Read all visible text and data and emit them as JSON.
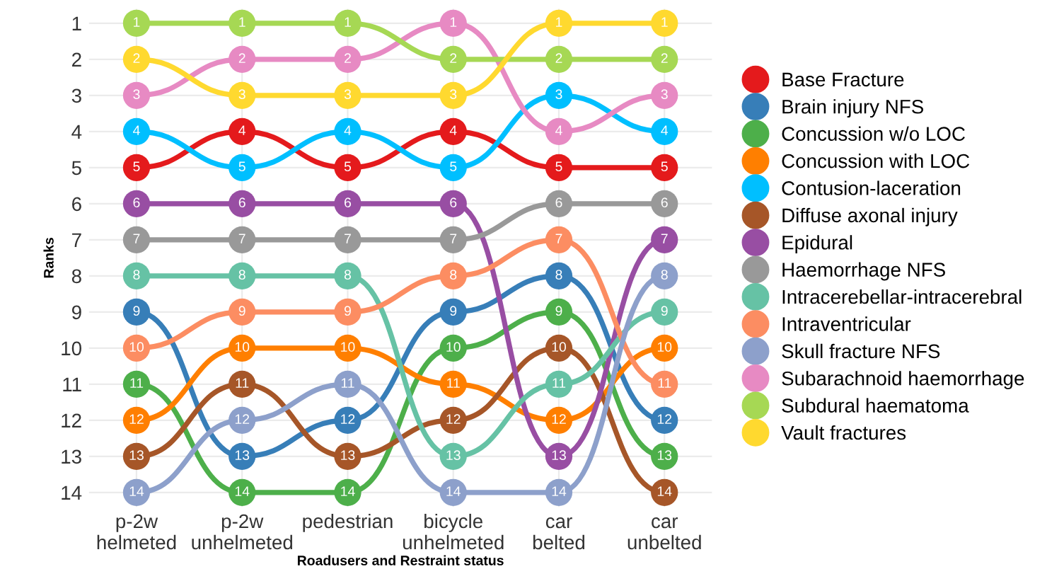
{
  "chart_data": {
    "type": "line",
    "xlabel": "Roadusers and Restraint status",
    "ylabel": "Ranks",
    "categories": [
      "p-2w\nhelmeted",
      "p-2w\nunhelmeted",
      "pedestrian",
      "bicycle\nunhelmeted",
      "car\nbelted",
      "car\nunbelted"
    ],
    "ylim": [
      14.4,
      0.6
    ],
    "yticks": [
      1,
      2,
      3,
      4,
      5,
      6,
      7,
      8,
      9,
      10,
      11,
      12,
      13,
      14
    ],
    "grid": true,
    "legend": "right",
    "marker": "circle",
    "line_style": "solid",
    "data_labels": true,
    "series": [
      {
        "name": "Base Fracture",
        "color": "#e41a1c",
        "values": [
          5,
          4,
          5,
          4,
          5,
          5
        ]
      },
      {
        "name": "Brain injury NFS",
        "color": "#377eb8",
        "values": [
          9,
          13,
          12,
          9,
          8,
          12
        ]
      },
      {
        "name": "Concussion w/o LOC",
        "color": "#4daf4a",
        "values": [
          11,
          14,
          14,
          10,
          9,
          13
        ]
      },
      {
        "name": "Concussion with LOC",
        "color": "#ff7f00",
        "values": [
          12,
          10,
          10,
          11,
          12,
          10
        ]
      },
      {
        "name": "Contusion-laceration",
        "color": "#00bfff",
        "values": [
          4,
          5,
          4,
          5,
          3,
          4
        ]
      },
      {
        "name": "Diffuse axonal injury",
        "color": "#a65628",
        "values": [
          13,
          11,
          13,
          12,
          10,
          14
        ]
      },
      {
        "name": "Epidural",
        "color": "#984ea3",
        "values": [
          6,
          6,
          6,
          6,
          13,
          7
        ]
      },
      {
        "name": "Haemorrhage NFS",
        "color": "#999999",
        "values": [
          7,
          7,
          7,
          7,
          6,
          6
        ]
      },
      {
        "name": "Intracerebellar-intracerebral",
        "color": "#66c2a5",
        "values": [
          8,
          8,
          8,
          13,
          11,
          9
        ]
      },
      {
        "name": "Intraventricular",
        "color": "#fc8d62",
        "values": [
          10,
          9,
          9,
          8,
          7,
          11
        ]
      },
      {
        "name": "Skull fracture NFS",
        "color": "#8da0cb",
        "values": [
          14,
          12,
          11,
          14,
          14,
          8
        ]
      },
      {
        "name": "Subarachnoid haemorrhage",
        "color": "#e78ac3",
        "values": [
          3,
          2,
          2,
          1,
          4,
          3
        ]
      },
      {
        "name": "Subdural haematoma",
        "color": "#a6d854",
        "values": [
          1,
          1,
          1,
          2,
          2,
          2
        ]
      },
      {
        "name": "Vault fractures",
        "color": "#ffd92f",
        "values": [
          2,
          3,
          3,
          3,
          1,
          1
        ]
      }
    ]
  }
}
